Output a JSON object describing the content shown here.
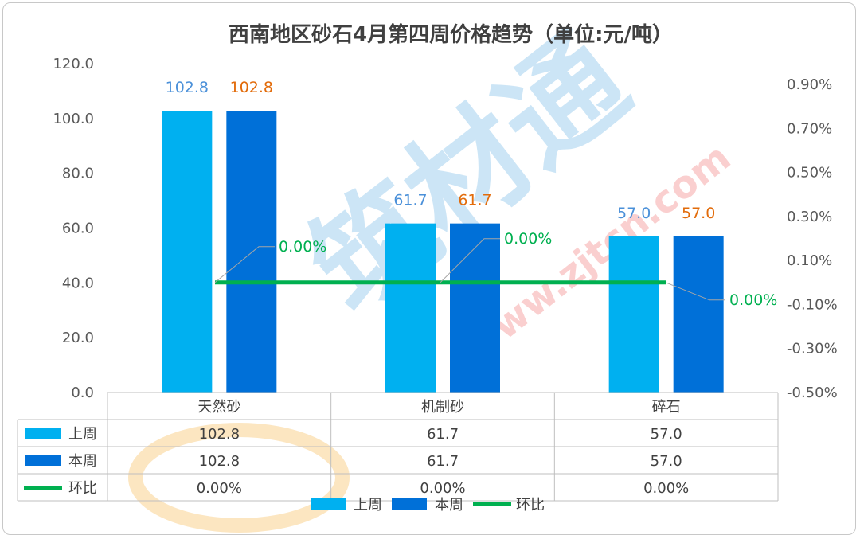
{
  "chart_data": {
    "type": "bar",
    "title": "西南地区砂石4月第四周价格趋势（单位:元/吨）",
    "categories": [
      "天然砂",
      "机制砂",
      "碎石"
    ],
    "series": [
      {
        "name": "上周",
        "type": "bar",
        "axis": "left",
        "values": [
          102.8,
          61.7,
          57.0
        ],
        "labels": [
          "102.8",
          "61.7",
          "57.0"
        ],
        "table": [
          "102.8",
          "61.7",
          "57.0"
        ],
        "color": "#00b0f0",
        "label_color": "#4a90d9"
      },
      {
        "name": "本周",
        "type": "bar",
        "axis": "left",
        "values": [
          102.8,
          61.7,
          57.0
        ],
        "labels": [
          "102.8",
          "61.7",
          "57.0"
        ],
        "table": [
          "102.8",
          "61.7",
          "57.0"
        ],
        "color": "#0070d8",
        "label_color": "#e26b0a"
      },
      {
        "name": "环比",
        "type": "line",
        "axis": "right",
        "values": [
          0.0,
          0.0,
          0.0
        ],
        "labels": [
          "0.00%",
          "0.00%",
          "0.00%"
        ],
        "table": [
          "0.00%",
          "0.00%",
          "0.00%"
        ],
        "color": "#00b050",
        "label_color": "#00b050"
      }
    ],
    "y_left": {
      "ylim": [
        0,
        120
      ],
      "ticks": [
        "0.0",
        "20.0",
        "40.0",
        "60.0",
        "80.0",
        "100.0",
        "120.0"
      ]
    },
    "y_right": {
      "ylim": [
        -0.5,
        0.9
      ],
      "ticks": [
        "-0.50%",
        "-0.30%",
        "-0.10%",
        "0.10%",
        "0.30%",
        "0.50%",
        "0.70%",
        "0.90%"
      ]
    },
    "data_table": true,
    "legend": "bottom"
  },
  "watermark": "筑材通 www.zjtcn.com"
}
